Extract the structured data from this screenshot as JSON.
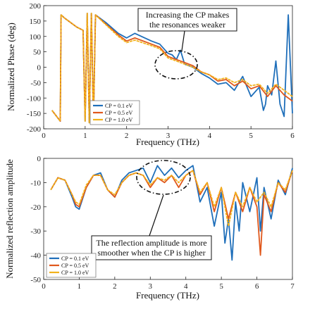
{
  "colors": {
    "series": [
      "#1f6fba",
      "#e0581c",
      "#f2b21c"
    ],
    "axis": "#222222",
    "annotation": "#111111"
  },
  "chart_data": [
    {
      "type": "line",
      "xlabel": "Frequency (THz)",
      "ylabel": "Normalized Phase (deg)",
      "xlim": [
        0,
        6
      ],
      "ylim": [
        -200,
        200
      ],
      "xticks": [
        "0",
        "1",
        "2",
        "3",
        "4",
        "5",
        "6"
      ],
      "yticks": [
        "200",
        "150",
        "100",
        "50",
        "0",
        "-50",
        "-100",
        "-150",
        "-200"
      ],
      "legend": [
        "CP = 0.1 eV",
        "CP = 0.5 eV",
        "CP = 1.0 eV"
      ],
      "legend_position": "bottom-left",
      "annotation": [
        "Increasing the CP makes",
        "the resonances weaker"
      ],
      "series": [
        {
          "name": "CP = 0.1 eV",
          "x": [
            0.2,
            0.4,
            0.42,
            0.5,
            0.8,
            0.95,
            1.0,
            1.05,
            1.1,
            1.15,
            1.2,
            1.25,
            1.5,
            1.8,
            2.0,
            2.2,
            2.6,
            2.8,
            3.0,
            3.1,
            3.2,
            3.3,
            3.4,
            3.6,
            3.8,
            4.0,
            4.2,
            4.4,
            4.6,
            4.8,
            5.0,
            5.2,
            5.3,
            5.35,
            5.4,
            5.5,
            5.6,
            5.7,
            5.8,
            5.9,
            6.0
          ],
          "y": [
            -140,
            -175,
            170,
            160,
            130,
            120,
            -175,
            175,
            -180,
            175,
            -175,
            170,
            145,
            110,
            95,
            110,
            85,
            75,
            45,
            40,
            25,
            55,
            10,
            0,
            -20,
            -35,
            -55,
            -50,
            -75,
            -30,
            -95,
            -65,
            -140,
            -120,
            -60,
            -90,
            20,
            -120,
            -160,
            170,
            -150
          ]
        },
        {
          "name": "CP = 0.5 eV",
          "x": [
            0.2,
            0.4,
            0.42,
            0.5,
            0.8,
            0.95,
            1.0,
            1.05,
            1.1,
            1.15,
            1.2,
            1.25,
            1.5,
            1.8,
            2.0,
            2.2,
            2.6,
            2.8,
            3.0,
            3.2,
            3.4,
            3.6,
            3.8,
            4.0,
            4.2,
            4.4,
            4.6,
            4.8,
            5.0,
            5.2,
            5.4,
            5.6,
            5.8,
            6.0
          ],
          "y": [
            -140,
            -175,
            170,
            160,
            130,
            120,
            -175,
            175,
            -180,
            175,
            -175,
            170,
            140,
            105,
            85,
            95,
            75,
            65,
            35,
            25,
            15,
            5,
            -15,
            -25,
            -45,
            -40,
            -60,
            -45,
            -70,
            -60,
            -95,
            -60,
            -90,
            -110
          ]
        },
        {
          "name": "CP = 1.0 eV",
          "x": [
            0.2,
            0.4,
            0.42,
            0.5,
            0.8,
            0.95,
            1.0,
            1.05,
            1.1,
            1.15,
            1.2,
            1.25,
            1.5,
            1.8,
            2.0,
            2.2,
            2.6,
            2.8,
            3.0,
            3.2,
            3.4,
            3.6,
            3.8,
            4.0,
            4.2,
            4.4,
            4.6,
            4.8,
            5.0,
            5.2,
            5.4,
            5.6,
            5.8,
            6.0
          ],
          "y": [
            -140,
            -175,
            170,
            160,
            130,
            120,
            -175,
            175,
            -180,
            175,
            -175,
            170,
            138,
            100,
            80,
            88,
            70,
            60,
            30,
            20,
            10,
            0,
            -15,
            -25,
            -40,
            -35,
            -50,
            -40,
            -60,
            -55,
            -85,
            -55,
            -75,
            -95
          ]
        }
      ]
    },
    {
      "type": "line",
      "xlabel": "Frequency (THz)",
      "ylabel": "Normalized reflection amplitude",
      "xlim": [
        0,
        7
      ],
      "ylim": [
        -50,
        0
      ],
      "xticks": [
        "0",
        "1",
        "2",
        "3",
        "4",
        "5",
        "6",
        "7"
      ],
      "yticks": [
        "0",
        "-10",
        "-20",
        "-30",
        "-40",
        "-50"
      ],
      "legend": [
        "CP = 0.1 eV",
        "CP = 0.5 eV",
        "CP = 1.0 eV"
      ],
      "legend_position": "bottom-left",
      "annotation": [
        "The reflection amplitude is more",
        "smoother when the CP is higher"
      ],
      "series": [
        {
          "name": "CP = 0.1 eV",
          "x": [
            0.2,
            0.4,
            0.6,
            0.8,
            0.9,
            1.0,
            1.2,
            1.4,
            1.6,
            1.8,
            2.0,
            2.2,
            2.4,
            2.6,
            2.8,
            3.0,
            3.2,
            3.4,
            3.6,
            3.8,
            4.0,
            4.2,
            4.4,
            4.6,
            4.8,
            5.0,
            5.1,
            5.2,
            5.3,
            5.4,
            5.5,
            5.6,
            5.8,
            6.0,
            6.1,
            6.2,
            6.4,
            6.6,
            6.8,
            7.0
          ],
          "y": [
            -13,
            -8,
            -9,
            -16,
            -20,
            -21,
            -12,
            -7,
            -6,
            -13,
            -16,
            -9,
            -6,
            -5,
            -4,
            -10,
            -3,
            -7,
            -4,
            -8,
            -5,
            -3,
            -18,
            -12,
            -28,
            -14,
            -35,
            -25,
            -42,
            -18,
            -30,
            -10,
            -22,
            -8,
            -30,
            -12,
            -25,
            -9,
            -15,
            -4
          ]
        },
        {
          "name": "CP = 0.5 eV",
          "x": [
            0.2,
            0.4,
            0.6,
            0.8,
            0.9,
            1.0,
            1.2,
            1.4,
            1.6,
            1.8,
            2.0,
            2.2,
            2.4,
            2.6,
            2.8,
            3.0,
            3.2,
            3.4,
            3.6,
            3.8,
            4.0,
            4.2,
            4.4,
            4.6,
            4.8,
            5.0,
            5.2,
            5.4,
            5.6,
            5.8,
            6.0,
            6.1,
            6.2,
            6.4,
            6.6,
            6.8,
            7.0
          ],
          "y": [
            -13,
            -8,
            -9,
            -15,
            -19,
            -20,
            -12,
            -7,
            -7,
            -13,
            -16,
            -10,
            -7,
            -6,
            -7,
            -12,
            -8,
            -10,
            -7,
            -12,
            -7,
            -5,
            -15,
            -10,
            -22,
            -12,
            -25,
            -14,
            -22,
            -12,
            -20,
            -40,
            -15,
            -22,
            -10,
            -14,
            -5
          ]
        },
        {
          "name": "CP = 1.0 eV",
          "x": [
            0.2,
            0.4,
            0.6,
            0.8,
            0.9,
            1.0,
            1.2,
            1.4,
            1.6,
            1.8,
            2.0,
            2.2,
            2.4,
            2.6,
            2.8,
            3.0,
            3.2,
            3.4,
            3.6,
            3.8,
            4.0,
            4.2,
            4.4,
            4.6,
            4.8,
            5.0,
            5.2,
            5.4,
            5.6,
            5.8,
            6.0,
            6.2,
            6.4,
            6.6,
            6.8,
            7.0
          ],
          "y": [
            -13,
            -8,
            -9,
            -15,
            -18,
            -19,
            -11,
            -7,
            -7,
            -13,
            -15,
            -10,
            -7,
            -6,
            -7,
            -11,
            -8,
            -9,
            -7,
            -10,
            -7,
            -5,
            -14,
            -10,
            -20,
            -12,
            -28,
            -14,
            -20,
            -12,
            -18,
            -14,
            -20,
            -10,
            -13,
            -5
          ]
        }
      ]
    }
  ]
}
